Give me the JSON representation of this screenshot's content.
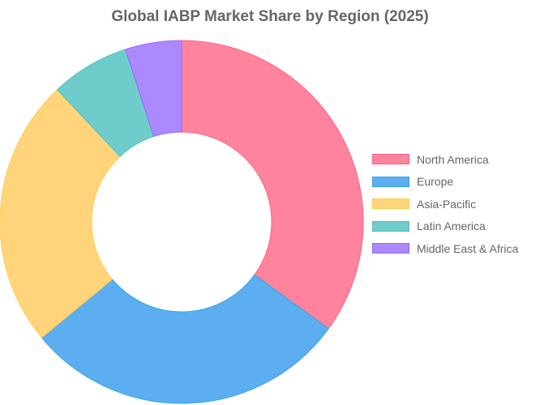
{
  "chart_data": {
    "type": "pie",
    "variant": "doughnut",
    "title": "Global IABP Market Share by Region (2025)",
    "legend_position": "right",
    "categories": [
      "North America",
      "Europe",
      "Asia-Pacific",
      "Latin America",
      "Middle East & Africa"
    ],
    "values": [
      35,
      29,
      24,
      7,
      5
    ],
    "colors": [
      "#ff839c",
      "#5caef0",
      "#ffd47a",
      "#6ecdcb",
      "#ac89ff"
    ],
    "border_colors": [
      "#ff6384",
      "#36a2eb",
      "#ffcd56",
      "#4bc0c0",
      "#9966ff"
    ]
  }
}
